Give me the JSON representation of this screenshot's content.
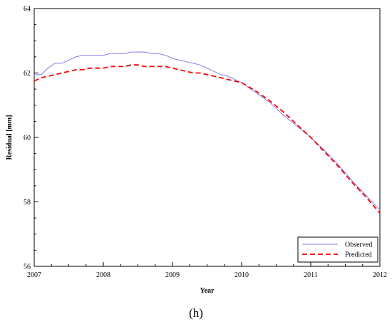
{
  "chart_data": {
    "type": "line",
    "title": "",
    "xlabel": "Year",
    "ylabel": "Residual [mm]",
    "xlim": [
      2007,
      2012
    ],
    "ylim": [
      56,
      64
    ],
    "x_ticks": [
      "2007",
      "2008",
      "2009",
      "2010",
      "2011",
      "2012"
    ],
    "y_ticks": [
      "56",
      "58",
      "60",
      "62",
      "64"
    ],
    "grid": false,
    "legend_position": "bottom-right",
    "series": [
      {
        "name": "Observed",
        "color": "#8080f0",
        "style": "solid",
        "x": [
          2007.0,
          2007.1,
          2007.2,
          2007.3,
          2007.4,
          2007.5,
          2007.6,
          2007.7,
          2007.8,
          2007.9,
          2008.0,
          2008.1,
          2008.2,
          2008.3,
          2008.4,
          2008.5,
          2008.6,
          2008.7,
          2008.8,
          2008.9,
          2009.0,
          2009.1,
          2009.2,
          2009.3,
          2009.4,
          2009.5,
          2009.6,
          2009.7,
          2009.8,
          2009.9,
          2010.0,
          2010.2,
          2010.4,
          2010.6,
          2010.8,
          2011.0,
          2011.2,
          2011.4,
          2011.6,
          2011.8,
          2012.0
        ],
        "y": [
          61.95,
          61.95,
          62.15,
          62.3,
          62.3,
          62.4,
          62.5,
          62.55,
          62.55,
          62.55,
          62.55,
          62.6,
          62.6,
          62.6,
          62.65,
          62.65,
          62.65,
          62.6,
          62.6,
          62.55,
          62.45,
          62.4,
          62.35,
          62.3,
          62.25,
          62.15,
          62.05,
          61.95,
          61.9,
          61.8,
          61.7,
          61.4,
          61.1,
          60.7,
          60.35,
          60.0,
          59.6,
          59.15,
          58.65,
          58.2,
          57.75
        ]
      },
      {
        "name": "Predicted",
        "color": "#ff0000",
        "style": "dashed",
        "x": [
          2007.0,
          2007.1,
          2007.2,
          2007.3,
          2007.4,
          2007.5,
          2007.6,
          2007.7,
          2007.8,
          2007.9,
          2008.0,
          2008.1,
          2008.2,
          2008.3,
          2008.4,
          2008.5,
          2008.6,
          2008.7,
          2008.8,
          2008.9,
          2009.0,
          2009.1,
          2009.2,
          2009.3,
          2009.4,
          2009.5,
          2009.6,
          2009.7,
          2009.8,
          2009.9,
          2010.0,
          2010.2,
          2010.4,
          2010.6,
          2010.8,
          2011.0,
          2011.2,
          2011.4,
          2011.6,
          2011.8,
          2012.0
        ],
        "y": [
          61.75,
          61.85,
          61.9,
          61.95,
          62.0,
          62.05,
          62.1,
          62.1,
          62.15,
          62.15,
          62.15,
          62.2,
          62.2,
          62.2,
          62.25,
          62.25,
          62.2,
          62.2,
          62.2,
          62.2,
          62.15,
          62.1,
          62.05,
          62.0,
          62.0,
          61.95,
          61.9,
          61.85,
          61.8,
          61.75,
          61.7,
          61.45,
          61.15,
          60.8,
          60.4,
          60.0,
          59.55,
          59.1,
          58.6,
          58.15,
          57.65
        ]
      }
    ],
    "panel_label": "(h)"
  }
}
